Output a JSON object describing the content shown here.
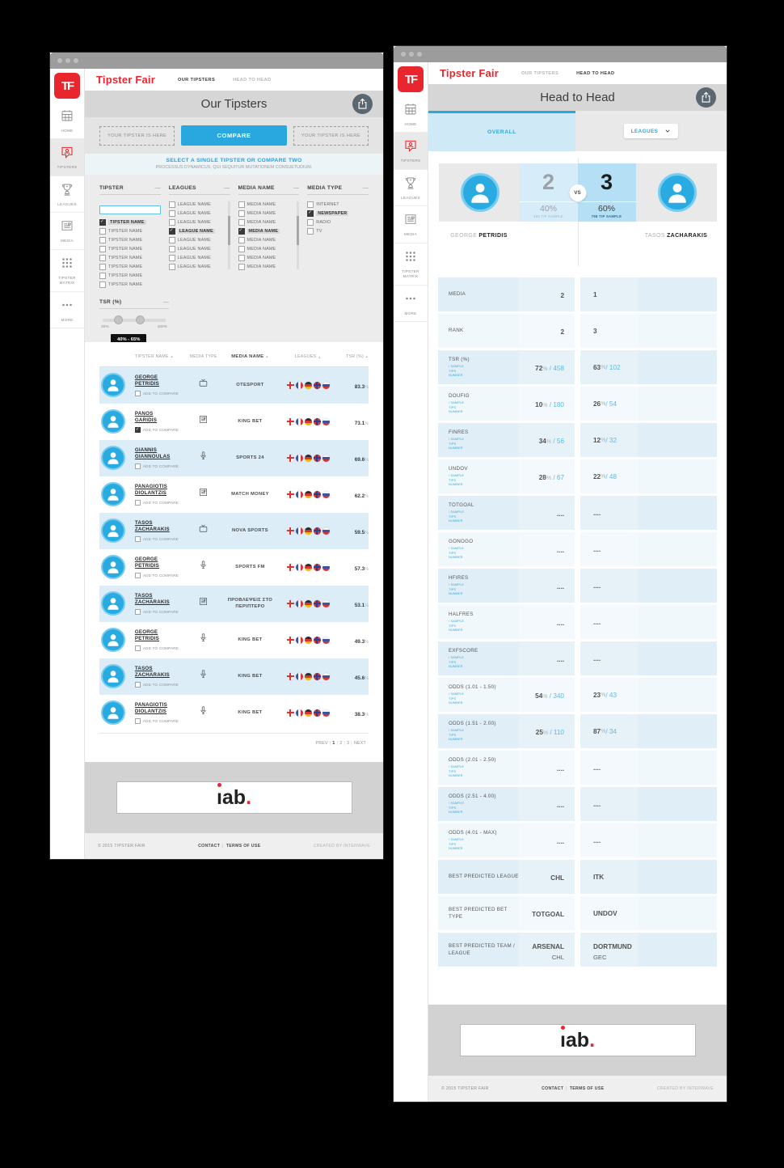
{
  "brand": {
    "name": "Tipster Fair",
    "monogram": "TF"
  },
  "nav": {
    "our_tipsters": "OUR TIPSTERS",
    "head_to_head": "HEAD TO HEAD"
  },
  "sidebar_items": [
    {
      "id": "home",
      "label": "HOME",
      "icon": "calendar-icon",
      "active": false
    },
    {
      "id": "tipsters",
      "label": "TIPSTERS",
      "icon": "person-bubble-icon",
      "active": true
    },
    {
      "id": "leagues",
      "label": "LEAGUES",
      "icon": "trophy-icon",
      "active": false
    },
    {
      "id": "media",
      "label": "MEDIA",
      "icon": "newspaper-icon",
      "active": false
    },
    {
      "id": "tipster-matrix",
      "label": "TIPSTER MATRIX",
      "icon": "grid-dots-icon",
      "active": false
    },
    {
      "id": "more",
      "label": "MORE",
      "icon": "ellipsis-icon",
      "active": false
    }
  ],
  "footer": {
    "copyright": "©  2015  TIPSTER FAIR",
    "contact": "CONTACT",
    "terms": "TERMS OF USE",
    "credit": "CREATED BY INTERWAVE",
    "banner_logo": "iab."
  },
  "tipsters_page": {
    "title": "Our Tipsters",
    "compare_slot_left": "YOUR TIPSTER IS HERE",
    "compare_slot_right": "YOUR TIPSTER IS HERE",
    "compare_button": "COMPARE",
    "hint_title": "SELECT A SINGLE TIPSTER OR COMPARE TWO",
    "hint_subtitle": "PROCESSUS DYNAMICUS, QUI SEQUITUR MUTATIONEM CONSUETUDIUM.",
    "filters": {
      "tipster": {
        "title": "TIPSTER",
        "search_value": "",
        "options": [
          {
            "label": "TIPSTER NAME",
            "checked": true
          },
          {
            "label": "TIPSTER NAME",
            "checked": false
          },
          {
            "label": "TIPSTER NAME",
            "checked": false
          },
          {
            "label": "TIPSTER NAME",
            "checked": false
          },
          {
            "label": "TIPSTER NAME",
            "checked": false
          },
          {
            "label": "TIPSTER NAME",
            "checked": false
          },
          {
            "label": "TIPSTER NAME",
            "checked": false
          },
          {
            "label": "TIPSTER NAME",
            "checked": false
          }
        ]
      },
      "leagues": {
        "title": "LEAGUES",
        "options": [
          {
            "label": "LEAGUE NAME",
            "checked": false
          },
          {
            "label": "LEAGUE NAME",
            "checked": false
          },
          {
            "label": "LEAGUE NAME",
            "checked": false
          },
          {
            "label": "LEAGUE NAME",
            "checked": true
          },
          {
            "label": "LEAGUE NAME",
            "checked": false
          },
          {
            "label": "LEAGUE NAME",
            "checked": false
          },
          {
            "label": "LEAGUE NAME",
            "checked": false
          },
          {
            "label": "LEAGUE NAME",
            "checked": false
          }
        ]
      },
      "media_name": {
        "title": "MEDIA NAME",
        "options": [
          {
            "label": "MEDIA NAME",
            "checked": false
          },
          {
            "label": "MEDIA NAME",
            "checked": false
          },
          {
            "label": "MEDIA NAME",
            "checked": false
          },
          {
            "label": "MEDIA NAME",
            "checked": true
          },
          {
            "label": "MEDIA NAME",
            "checked": false
          },
          {
            "label": "MEDIA NAME",
            "checked": false
          },
          {
            "label": "MEDIA NAME",
            "checked": false
          },
          {
            "label": "MEDIA NAME",
            "checked": false
          }
        ]
      },
      "media_type": {
        "title": "MEDIA TYPE",
        "options": [
          {
            "label": "INTERNET",
            "checked": false
          },
          {
            "label": "NEWSPAPER",
            "checked": true
          },
          {
            "label": "RADIO",
            "checked": false
          },
          {
            "label": "TV",
            "checked": false
          }
        ]
      },
      "tsr": {
        "title": "TSR (%)",
        "min_label": "20%",
        "max_label": "100%",
        "selected_range": "40% - 65%"
      }
    },
    "table": {
      "headers": [
        {
          "label": "TIPSTER NAME",
          "sortable": true
        },
        {
          "label": "MEDIA TYPE",
          "sortable": false
        },
        {
          "label": "MEDIA NAME",
          "sortable": true
        },
        {
          "label": "LEAGUES",
          "sortable": true
        },
        {
          "label": "TSR (%)",
          "sortable": true
        }
      ],
      "add_to_compare_label": "ADD TO COMPARE",
      "flags": [
        "england",
        "france",
        "germany",
        "norway",
        "russia"
      ],
      "rows": [
        {
          "first": "GEORGE",
          "last": "PETRIDIS",
          "media_type": "tv",
          "media_name": "OTESPORT",
          "tsr": "83.3",
          "compare_checked": false
        },
        {
          "first": "PANOS",
          "last": "GARIDIS",
          "media_type": "newspaper",
          "media_name": "KING BET",
          "tsr": "73.1",
          "compare_checked": true
        },
        {
          "first": "GIANNIS",
          "last": "GIANNOULAS",
          "media_type": "microphone",
          "media_name": "SPORTS 24",
          "tsr": "69.6",
          "compare_checked": false
        },
        {
          "first": "PANAGIOTIS",
          "last": "DIOLANTZIS",
          "media_type": "newspaper",
          "media_name": "MATCH MONEY",
          "tsr": "62.2",
          "compare_checked": false
        },
        {
          "first": "TASOS",
          "last": "ZACHARAKIS",
          "media_type": "tv",
          "media_name": "NOVA SPORTS",
          "tsr": "59.5",
          "compare_checked": false
        },
        {
          "first": "GEORGE",
          "last": "PETRIDIS",
          "media_type": "microphone",
          "media_name": "SPORTS FM",
          "tsr": "57.3",
          "compare_checked": false
        },
        {
          "first": "TASOS",
          "last": "ZACHARAKIS",
          "media_type": "newspaper",
          "media_name": "ΠΡΟΒΛΕΨΕΙΣ ΣΤΟ ΠΕΡΙΠΤΕΡΟ",
          "tsr": "53.1",
          "compare_checked": false
        },
        {
          "first": "GEORGE",
          "last": "PETRIDIS",
          "media_type": "microphone",
          "media_name": "KING BET",
          "tsr": "49.3",
          "compare_checked": false
        },
        {
          "first": "TASOS",
          "last": "ZACHARAKIS",
          "media_type": "microphone",
          "media_name": "KING BET",
          "tsr": "45.6",
          "compare_checked": false
        },
        {
          "first": "PANAGIOTIS",
          "last": "DIOLANTZIS",
          "media_type": "microphone",
          "media_name": "KING BET",
          "tsr": "38.3",
          "compare_checked": false
        }
      ],
      "pagination": {
        "prev": "PREV",
        "pages": [
          "1",
          "2",
          "3"
        ],
        "current": "1",
        "next": "NEXT"
      }
    }
  },
  "head_to_head_page": {
    "title": "Head to Head",
    "tab_overall": "OVERALL",
    "leagues_dropdown": "LEAGUES",
    "versus": {
      "vs_label": "VS",
      "left": {
        "first": "GEORGE",
        "last": "PETRIDIS",
        "score": "2",
        "percent": "40%",
        "sample": "456 TIP SAMPLE"
      },
      "right": {
        "first": "TASOS",
        "last": "ZACHARAKIS",
        "score": "3",
        "percent": "60%",
        "sample": "798 TIP SAMPLE"
      }
    },
    "sample_sublabel_lines": [
      "/ SAMPLE",
      "TIPS",
      "NUMBER"
    ],
    "stats": [
      {
        "label": "MEDIA",
        "left_value": "2",
        "right_value": "1"
      },
      {
        "label": "RANK",
        "left_value": "2",
        "right_value": "3"
      },
      {
        "label": "TSR (%)",
        "has_sub": true,
        "left_pct": "72",
        "left_count": "458",
        "right_pct": "63",
        "right_count": "102"
      },
      {
        "label": "DOUFIG",
        "has_sub": true,
        "left_pct": "10",
        "left_count": "180",
        "right_pct": "26",
        "right_count": "54"
      },
      {
        "label": "FINRES",
        "has_sub": true,
        "left_pct": "34",
        "left_count": "56",
        "right_pct": "12",
        "right_count": "32"
      },
      {
        "label": "UNDOV",
        "has_sub": true,
        "left_pct": "28",
        "left_count": "67",
        "right_pct": "22",
        "right_count": "48"
      },
      {
        "label": "TOTGOAL",
        "has_sub": true,
        "left_value": "....",
        "right_value": "...."
      },
      {
        "label": "GONOGO",
        "has_sub": true,
        "left_value": "....",
        "right_value": "...."
      },
      {
        "label": "HFIRES",
        "has_sub": true,
        "left_value": "....",
        "right_value": "...."
      },
      {
        "label": "HALFRES",
        "has_sub": true,
        "left_value": "....",
        "right_value": "...."
      },
      {
        "label": "EXFSCORE",
        "has_sub": true,
        "left_value": "....",
        "right_value": "...."
      },
      {
        "label": "ODDS (1.01 - 1.50)",
        "has_sub": true,
        "left_pct": "54",
        "left_count": "340",
        "right_pct": "23",
        "right_count": "43"
      },
      {
        "label": "ODDS (1.51 - 2.00)",
        "has_sub": true,
        "left_pct": "25",
        "left_count": "110",
        "right_pct": "87",
        "right_count": "34"
      },
      {
        "label": "ODDS (2.01 - 2.50)",
        "has_sub": true,
        "left_value": "....",
        "right_value": "...."
      },
      {
        "label": "ODDS (2.51 - 4.00)",
        "has_sub": true,
        "left_value": "....",
        "right_value": "...."
      },
      {
        "label": "ODDS (4.01 - MAX)",
        "has_sub": true,
        "left_value": "....",
        "right_value": "...."
      },
      {
        "label": "BEST PREDICTED LEAGUE",
        "left_value": "CHL",
        "right_value": "ITK"
      },
      {
        "label": "BEST PREDICTED BET TYPE",
        "left_value": "TOTGOAL",
        "right_value": "UNDOV"
      },
      {
        "label": "BEST PREDICTED TEAM / LEAGUE",
        "left_value": "ARSENAL",
        "left_value2": "CHL",
        "right_value": "DORTMUND",
        "right_value2": "GEC"
      }
    ]
  },
  "colors": {
    "brand_red": "#e9262e",
    "accent_blue": "#29a8e0",
    "row_blue": "#ddedf8",
    "stat_row_odd": "#e0eef7",
    "stat_row_even": "#f0f8fc"
  }
}
